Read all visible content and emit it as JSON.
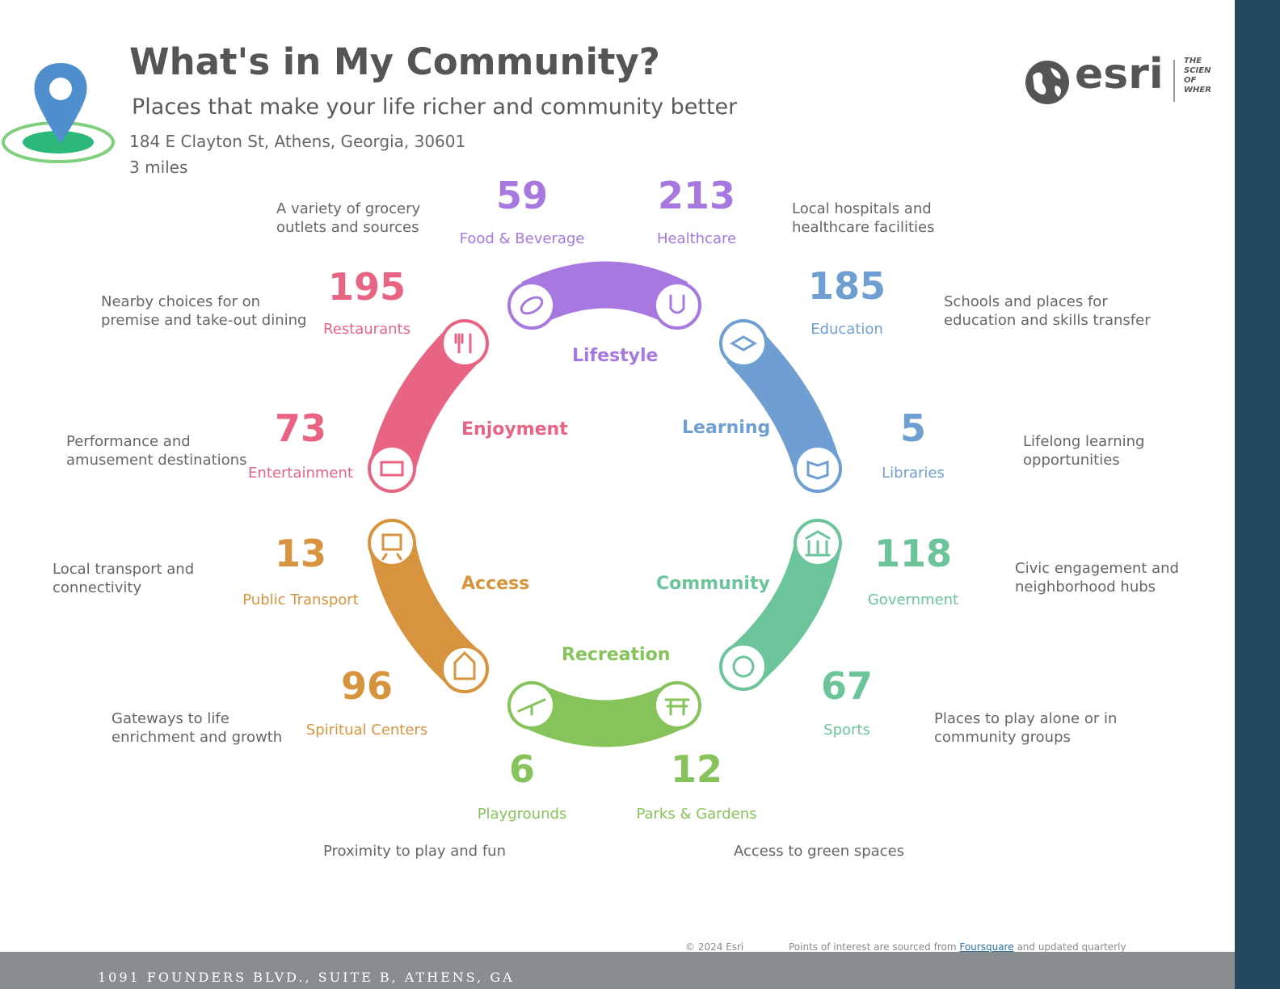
{
  "header": {
    "title": "What's in My Community?",
    "subtitle": "Places that make your life richer and community better",
    "address": "184 E Clayton St, Athens, Georgia, 30601",
    "radius": "3 miles"
  },
  "logo": {
    "brand": "esri",
    "tagline": [
      "THE",
      "SCIEN",
      "OF",
      "WHER"
    ]
  },
  "groups": {
    "lifestyle": "Lifestyle",
    "learning": "Learning",
    "community": "Community",
    "recreation": "Recreation",
    "access": "Access",
    "enjoyment": "Enjoyment"
  },
  "colors": {
    "lifestyle": "#a678e0",
    "learning": "#6f9fd2",
    "community": "#6cc59a",
    "recreation": "#86c35a",
    "access": "#d8933e",
    "enjoyment": "#e96483"
  },
  "categories": {
    "food": {
      "count": "59",
      "label": "Food & Beverage",
      "desc": "A variety of grocery\noutlets and sources",
      "icon": "bread-icon"
    },
    "healthcare": {
      "count": "213",
      "label": "Healthcare",
      "desc": "Local hospitals and\nhealthcare facilities",
      "icon": "stethoscope-icon"
    },
    "education": {
      "count": "185",
      "label": "Education",
      "desc": "Schools and places for\neducation and skills transfer",
      "icon": "graduation-cap-icon"
    },
    "libraries": {
      "count": "5",
      "label": "Libraries",
      "desc": "Lifelong learning\nopportunities",
      "icon": "book-icon"
    },
    "government": {
      "count": "118",
      "label": "Government",
      "desc": "Civic engagement and\nneighborhood hubs",
      "icon": "government-building-icon"
    },
    "sports": {
      "count": "67",
      "label": "Sports",
      "desc": "Places to play alone or in\ncommunity groups",
      "icon": "soccer-ball-icon"
    },
    "parks": {
      "count": "12",
      "label": "Parks & Gardens",
      "desc": "Access to green spaces",
      "icon": "park-bench-icon"
    },
    "playgrounds": {
      "count": "6",
      "label": "Playgrounds",
      "desc": "Proximity to play and fun",
      "icon": "seesaw-icon"
    },
    "spiritual": {
      "count": "96",
      "label": "Spiritual Centers",
      "desc": "Gateways to life\nenrichment and growth",
      "icon": "church-icon"
    },
    "transport": {
      "count": "13",
      "label": "Public Transport",
      "desc": "Local transport and\nconnectivity",
      "icon": "train-icon"
    },
    "entertainment": {
      "count": "73",
      "label": "Entertainment",
      "desc": "Performance and\namusement destinations",
      "icon": "ticket-icon"
    },
    "restaurants": {
      "count": "195",
      "label": "Restaurants",
      "desc": "Nearby choices for on\npremise and take-out dining",
      "icon": "fork-knife-icon"
    }
  },
  "credits": {
    "copyright": "© 2024 Esri",
    "source_prefix": "Points of interest are sourced from",
    "source_link": "Foursquare",
    "source_suffix": "and updated quarterly"
  },
  "footer": {
    "address": "1091 FOUNDERS BLVD., SUITE B, ATHENS, GA"
  }
}
